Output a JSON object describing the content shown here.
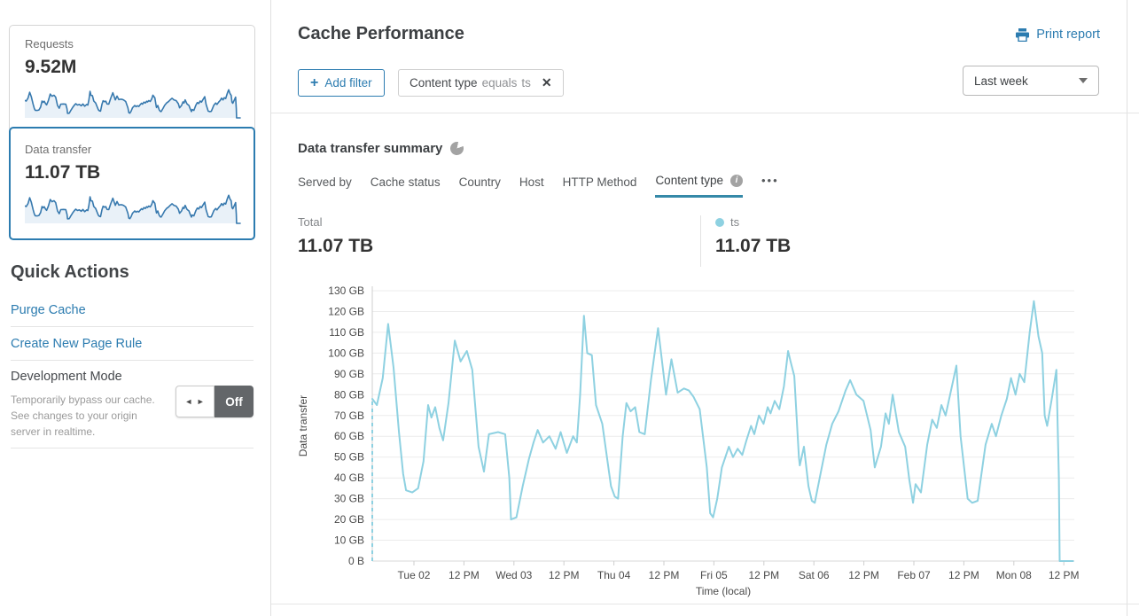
{
  "sidebar": {
    "cards": [
      {
        "label": "Requests",
        "value": "9.52M",
        "selected": false
      },
      {
        "label": "Data transfer",
        "value": "11.07 TB",
        "selected": true
      }
    ],
    "spark_line_color": "#3779ae",
    "spark_fill_color": "#e9f1f8",
    "selected_card_border": "#2c7cb0",
    "quick_actions": {
      "title": "Quick Actions",
      "links": [
        "Purge Cache",
        "Create New Page Rule"
      ],
      "development_mode": {
        "title": "Development Mode",
        "description": "Temporarily bypass our cache. See changes to your origin server in realtime.",
        "toggle_state": "Off"
      }
    }
  },
  "header": {
    "title": "Cache Performance",
    "print_label": "Print report"
  },
  "filters": {
    "add_label": "Add filter",
    "chip": {
      "field": "Content type",
      "operator": "equals",
      "value": "ts"
    },
    "range_selected": "Last week"
  },
  "summary": {
    "title": "Data transfer summary",
    "tabs": [
      {
        "label": "Served by",
        "active": false
      },
      {
        "label": "Cache status",
        "active": false
      },
      {
        "label": "Country",
        "active": false
      },
      {
        "label": "Host",
        "active": false
      },
      {
        "label": "HTTP Method",
        "active": false
      },
      {
        "label": "Content type",
        "active": true,
        "info": true
      }
    ],
    "total_label": "Total",
    "total_value": "11.07 TB",
    "legend": [
      {
        "label": "ts",
        "value": "11.07 TB",
        "color": "#8ed1e1"
      }
    ]
  },
  "icons": {
    "plus": "+",
    "close": "✕",
    "more": "•••",
    "info": "i",
    "toggle_arrows": "◄ ►"
  },
  "chart_data": {
    "type": "line",
    "title": "Data transfer summary",
    "xlabel": "Time (local)",
    "ylabel": "Data transfer",
    "unit": "GB",
    "x_unit": "hours from start of range (last week, ticks every 12 h)",
    "xlim": [
      0,
      168.5
    ],
    "ylim": [
      0,
      130
    ],
    "grid": "horizontal",
    "legend_position": "above-right",
    "start_dashed": true,
    "y_ticks": [
      {
        "v": 0,
        "label": "0 B"
      },
      {
        "v": 10,
        "label": "10 GB"
      },
      {
        "v": 20,
        "label": "20 GB"
      },
      {
        "v": 30,
        "label": "30 GB"
      },
      {
        "v": 40,
        "label": "40 GB"
      },
      {
        "v": 50,
        "label": "50 GB"
      },
      {
        "v": 60,
        "label": "60 GB"
      },
      {
        "v": 70,
        "label": "70 GB"
      },
      {
        "v": 80,
        "label": "80 GB"
      },
      {
        "v": 90,
        "label": "90 GB"
      },
      {
        "v": 100,
        "label": "100 GB"
      },
      {
        "v": 110,
        "label": "110 GB"
      },
      {
        "v": 120,
        "label": "120 GB"
      },
      {
        "v": 130,
        "label": "130 GB"
      }
    ],
    "x_ticks": [
      {
        "v": 10,
        "label": "Tue 02"
      },
      {
        "v": 22,
        "label": "12 PM"
      },
      {
        "v": 34,
        "label": "Wed 03"
      },
      {
        "v": 46,
        "label": "12 PM"
      },
      {
        "v": 58,
        "label": "Thu 04"
      },
      {
        "v": 70,
        "label": "12 PM"
      },
      {
        "v": 82,
        "label": "Fri 05"
      },
      {
        "v": 94,
        "label": "12 PM"
      },
      {
        "v": 106,
        "label": "Sat 06"
      },
      {
        "v": 118,
        "label": "12 PM"
      },
      {
        "v": 130,
        "label": "Feb 07"
      },
      {
        "v": 142,
        "label": "12 PM"
      },
      {
        "v": 154,
        "label": "Mon 08"
      },
      {
        "v": 166,
        "label": "12 PM"
      }
    ],
    "series": [
      {
        "name": "ts",
        "color": "#8ed1e1",
        "points": [
          [
            0,
            78
          ],
          [
            1.1,
            75
          ],
          [
            2.5,
            88
          ],
          [
            3.8,
            114
          ],
          [
            5.1,
            93
          ],
          [
            6.4,
            62
          ],
          [
            7.4,
            42
          ],
          [
            8.1,
            34
          ],
          [
            9.6,
            33
          ],
          [
            11,
            35
          ],
          [
            12.3,
            48
          ],
          [
            13.4,
            75
          ],
          [
            14.2,
            69
          ],
          [
            15.1,
            74
          ],
          [
            16.1,
            64
          ],
          [
            17,
            58
          ],
          [
            18.3,
            76
          ],
          [
            19.8,
            106
          ],
          [
            21.2,
            96
          ],
          [
            22.7,
            101
          ],
          [
            24,
            92
          ],
          [
            25.5,
            55
          ],
          [
            26.8,
            43
          ],
          [
            28,
            61
          ],
          [
            30.2,
            62
          ],
          [
            31.9,
            61
          ],
          [
            32.9,
            40
          ],
          [
            33.3,
            20
          ],
          [
            34.6,
            21
          ],
          [
            36.1,
            36
          ],
          [
            37.6,
            49
          ],
          [
            38.7,
            57
          ],
          [
            39.7,
            63
          ],
          [
            41,
            57
          ],
          [
            42.5,
            60
          ],
          [
            44,
            54
          ],
          [
            45.2,
            62
          ],
          [
            46.7,
            52
          ],
          [
            48.2,
            60
          ],
          [
            49.1,
            57
          ],
          [
            49.9,
            80
          ],
          [
            50.8,
            118
          ],
          [
            51.6,
            100
          ],
          [
            52.7,
            99
          ],
          [
            53.7,
            75
          ],
          [
            55.2,
            66
          ],
          [
            57.3,
            36
          ],
          [
            58.2,
            31
          ],
          [
            59,
            30
          ],
          [
            60.1,
            60
          ],
          [
            61,
            76
          ],
          [
            62,
            72
          ],
          [
            63.1,
            74
          ],
          [
            64.1,
            62
          ],
          [
            65.4,
            61
          ],
          [
            66.9,
            87
          ],
          [
            68.6,
            112
          ],
          [
            70.5,
            80
          ],
          [
            71.8,
            97
          ],
          [
            73.3,
            81
          ],
          [
            74.8,
            83
          ],
          [
            76,
            82
          ],
          [
            77.1,
            79
          ],
          [
            78.6,
            73
          ],
          [
            80.3,
            45
          ],
          [
            81.1,
            23
          ],
          [
            81.8,
            21
          ],
          [
            82.8,
            30
          ],
          [
            83.9,
            45
          ],
          [
            85.6,
            55
          ],
          [
            86.6,
            50
          ],
          [
            87.7,
            54
          ],
          [
            88.8,
            51
          ],
          [
            89.8,
            58
          ],
          [
            90.9,
            65
          ],
          [
            91.7,
            61
          ],
          [
            92.8,
            70
          ],
          [
            93.9,
            66
          ],
          [
            94.9,
            74
          ],
          [
            95.6,
            71
          ],
          [
            96.6,
            77
          ],
          [
            97.7,
            73
          ],
          [
            98.8,
            84
          ],
          [
            99.8,
            101
          ],
          [
            100.4,
            96
          ],
          [
            101.3,
            89
          ],
          [
            102.4,
            50
          ],
          [
            102.6,
            46
          ],
          [
            103.6,
            55
          ],
          [
            104.7,
            36
          ],
          [
            105.5,
            29
          ],
          [
            106.2,
            28
          ],
          [
            107.7,
            43
          ],
          [
            109,
            56
          ],
          [
            110.4,
            66
          ],
          [
            111.9,
            72
          ],
          [
            113.6,
            82
          ],
          [
            114.7,
            87
          ],
          [
            116.2,
            80
          ],
          [
            117.9,
            77
          ],
          [
            119.6,
            63
          ],
          [
            120.6,
            45
          ],
          [
            122.1,
            55
          ],
          [
            123.2,
            71
          ],
          [
            124,
            66
          ],
          [
            124.9,
            80
          ],
          [
            126.4,
            62
          ],
          [
            127.9,
            55
          ],
          [
            128.9,
            39
          ],
          [
            129.8,
            28
          ],
          [
            130.4,
            37
          ],
          [
            131.7,
            33
          ],
          [
            133.2,
            56
          ],
          [
            134.4,
            68
          ],
          [
            135.5,
            64
          ],
          [
            136.6,
            75
          ],
          [
            137.6,
            70
          ],
          [
            138.7,
            80
          ],
          [
            140.2,
            94
          ],
          [
            141.2,
            60
          ],
          [
            142.9,
            30
          ],
          [
            144,
            28
          ],
          [
            145.3,
            29
          ],
          [
            147.2,
            56
          ],
          [
            148.7,
            66
          ],
          [
            149.7,
            60
          ],
          [
            151,
            70
          ],
          [
            152.3,
            78
          ],
          [
            153.3,
            88
          ],
          [
            154.4,
            80
          ],
          [
            155.4,
            90
          ],
          [
            156.5,
            86
          ],
          [
            157.8,
            110
          ],
          [
            158.8,
            125
          ],
          [
            159.9,
            108
          ],
          [
            160.8,
            100
          ],
          [
            161.4,
            70
          ],
          [
            162,
            65
          ],
          [
            163.1,
            78
          ],
          [
            164.2,
            92
          ],
          [
            164.8,
            40
          ],
          [
            165,
            0
          ],
          [
            166.7,
            0
          ],
          [
            168.2,
            0
          ]
        ]
      }
    ]
  }
}
